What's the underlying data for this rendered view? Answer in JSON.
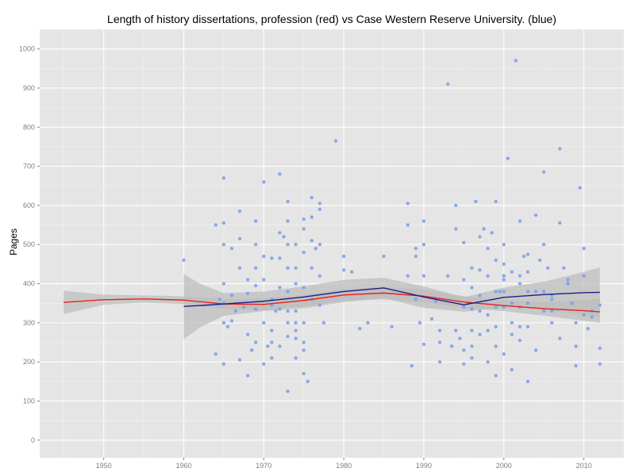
{
  "chart_data": {
    "type": "scatter",
    "title": "Length of history dissertations, profession (red) vs Case Western Reserve University. (blue)",
    "xlabel": "",
    "ylabel": "Pages",
    "xlim": [
      1942,
      2015
    ],
    "ylim": [
      -45,
      1050
    ],
    "x_ticks": [
      1950,
      1960,
      1970,
      1980,
      1990,
      2000,
      2010
    ],
    "y_ticks": [
      0,
      100,
      200,
      300,
      400,
      500,
      600,
      700,
      800,
      900,
      1000
    ],
    "grid": true,
    "legend": "none",
    "colors": {
      "panel": "#e5e5e5",
      "grid_major": "#ffffff",
      "grid_minor": "#f2f2f2",
      "points": "#7da2e8",
      "band": "#bdbdbd",
      "profession_line": "#e8201b",
      "cwru_line": "#1c1c8c"
    },
    "series": [
      {
        "type": "scatter",
        "x": [
          1960,
          1964,
          1964,
          1964.5,
          1965,
          1965,
          1965,
          1965,
          1965,
          1965,
          1965,
          1965.5,
          1966,
          1966,
          1966,
          1966.5,
          1967,
          1967,
          1967,
          1967,
          1967.5,
          1968,
          1968,
          1968,
          1968,
          1968.5,
          1969,
          1969,
          1969,
          1969,
          1969,
          1969,
          1970,
          1970,
          1970,
          1970,
          1970,
          1970.5,
          1971,
          1971,
          1971,
          1971,
          1971,
          1971,
          1971.5,
          1972,
          1972,
          1972,
          1972,
          1972,
          1972,
          1972.5,
          1973,
          1973,
          1973,
          1973,
          1973,
          1973,
          1973,
          1973,
          1973,
          1974,
          1974,
          1974,
          1974,
          1974,
          1974,
          1974,
          1974,
          1975,
          1975,
          1975,
          1975,
          1975,
          1975,
          1975,
          1975,
          1975.5,
          1976,
          1976,
          1976,
          1976,
          1976,
          1976.5,
          1977,
          1977,
          1977,
          1977,
          1977,
          1977.5,
          1979,
          1980,
          1980,
          1981,
          1982,
          1983,
          1985,
          1986,
          1988,
          1988,
          1988,
          1988.5,
          1989,
          1989,
          1989,
          1989.5,
          1990,
          1990,
          1990,
          1990,
          1991,
          1991.5,
          1992,
          1992,
          1992,
          1993,
          1993,
          1993.5,
          1994,
          1994,
          1994,
          1994.5,
          1995,
          1995,
          1995,
          1995,
          1995,
          1995.5,
          1996,
          1996,
          1996,
          1996,
          1996,
          1996,
          1996.5,
          1997,
          1997,
          1997,
          1997,
          1997,
          1997.5,
          1998,
          1998,
          1998,
          1998,
          1998,
          1998.5,
          1999,
          1999,
          1999,
          1999,
          1999,
          1999,
          1999,
          1999.5,
          2000,
          2000,
          2000,
          2000,
          2000,
          2000,
          2000,
          2000.5,
          2001,
          2001,
          2001,
          2001,
          2001,
          2001.5,
          2002,
          2002,
          2002,
          2002,
          2002,
          2002,
          2002.5,
          2003,
          2003,
          2003,
          2003,
          2003,
          2003,
          2004,
          2004,
          2004,
          2004.5,
          2005,
          2005,
          2005,
          2005,
          2005.5,
          2006,
          2006,
          2006,
          2006,
          2007,
          2007,
          2007,
          2007.5,
          2008,
          2008,
          2008,
          2008.5,
          2009,
          2009,
          2009,
          2009.5,
          2010,
          2010,
          2010,
          2010.5,
          2011,
          2011,
          2012,
          2012,
          2012
        ],
        "y": [
          460,
          550,
          220,
          360,
          670,
          555,
          500,
          400,
          350,
          300,
          195,
          290,
          490,
          370,
          305,
          330,
          585,
          515,
          440,
          205,
          340,
          375,
          410,
          270,
          165,
          230,
          560,
          500,
          440,
          395,
          335,
          250,
          660,
          470,
          410,
          300,
          195,
          240,
          465,
          360,
          345,
          280,
          250,
          210,
          330,
          680,
          530,
          465,
          390,
          335,
          240,
          520,
          610,
          560,
          500,
          440,
          380,
          330,
          300,
          265,
          125,
          500,
          440,
          400,
          330,
          300,
          280,
          260,
          210,
          565,
          540,
          480,
          390,
          300,
          250,
          230,
          170,
          150,
          620,
          570,
          510,
          440,
          360,
          490,
          605,
          590,
          500,
          420,
          345,
          300,
          765,
          470,
          435,
          430,
          285,
          300,
          470,
          290,
          605,
          550,
          420,
          190,
          490,
          470,
          360,
          300,
          560,
          500,
          420,
          245,
          310,
          355,
          280,
          250,
          200,
          910,
          420,
          240,
          600,
          540,
          280,
          260,
          505,
          410,
          340,
          230,
          195,
          350,
          440,
          390,
          335,
          280,
          240,
          210,
          610,
          520,
          435,
          370,
          330,
          270,
          540,
          490,
          420,
          320,
          280,
          200,
          530,
          460,
          380,
          340,
          290,
          240,
          165,
          610,
          380,
          500,
          450,
          410,
          380,
          340,
          220,
          420,
          720,
          430,
          350,
          270,
          180,
          300,
          970,
          420,
          400,
          340,
          290,
          255,
          560,
          470,
          380,
          350,
          290,
          150,
          475,
          430,
          380,
          230,
          575,
          460,
          380,
          330,
          685,
          500,
          440,
          360,
          300,
          370,
          330,
          260,
          555,
          745,
          440,
          400,
          400,
          410,
          350,
          300,
          240,
          190,
          645,
          490,
          420,
          320,
          285,
          330,
          315,
          345,
          235,
          195
        ]
      },
      {
        "type": "band",
        "x": [
          1945,
          1950,
          1955,
          1960,
          1965,
          1970,
          1975,
          1980,
          1985,
          1990,
          1995,
          2000,
          2005,
          2010,
          2012
        ],
        "y_low": [
          322,
          346,
          352,
          348,
          336,
          332,
          342,
          356,
          360,
          352,
          338,
          330,
          318,
          305,
          300
        ],
        "y_high": [
          382,
          372,
          370,
          368,
          360,
          362,
          372,
          386,
          392,
          385,
          368,
          358,
          353,
          358,
          362
        ]
      },
      {
        "type": "band",
        "x": [
          1960,
          1962,
          1965,
          1970,
          1975,
          1980,
          1985,
          1990,
          1995,
          2000,
          2005,
          2010,
          2012
        ],
        "y_low": [
          258,
          288,
          318,
          330,
          337,
          353,
          363,
          338,
          328,
          340,
          333,
          320,
          315
        ],
        "y_high": [
          425,
          400,
          376,
          380,
          393,
          410,
          415,
          393,
          365,
          390,
          405,
          430,
          442
        ]
      },
      {
        "type": "line",
        "x": [
          1945,
          1950,
          1955,
          1960,
          1965,
          1970,
          1975,
          1980,
          1985,
          1990,
          1995,
          2000,
          2005,
          2010,
          2012
        ],
        "y": [
          352,
          359,
          361,
          358,
          348,
          347,
          357,
          371,
          376,
          368,
          353,
          344,
          336,
          331,
          328
        ]
      },
      {
        "type": "line",
        "x": [
          1960,
          1962,
          1965,
          1970,
          1975,
          1980,
          1985,
          1990,
          1995,
          2000,
          2005,
          2010,
          2012
        ],
        "y": [
          342,
          344,
          348,
          355,
          366,
          380,
          389,
          366,
          346,
          365,
          372,
          377,
          378
        ]
      }
    ]
  }
}
